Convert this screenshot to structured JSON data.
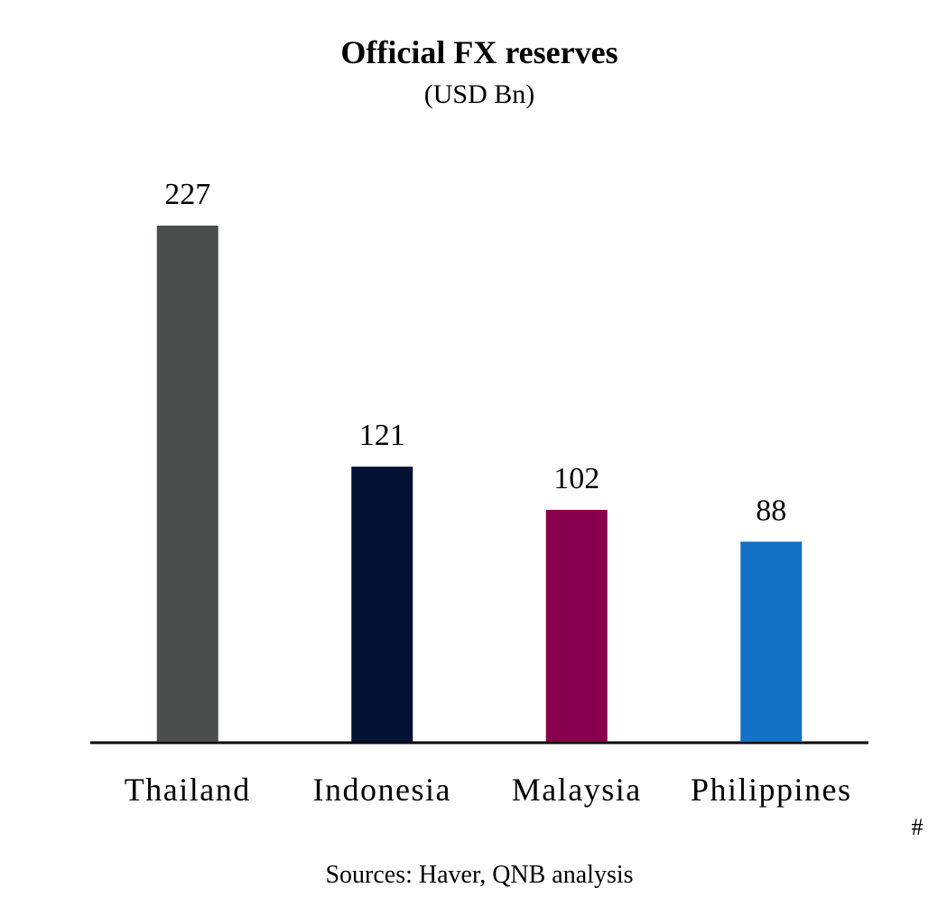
{
  "chart_data": {
    "type": "bar",
    "title": "Official FX reserves",
    "subtitle": "(USD Bn)",
    "categories": [
      "Thailand",
      "Indonesia",
      "Malaysia",
      "Philippines"
    ],
    "values": [
      227,
      121,
      102,
      88
    ],
    "colors": [
      "#4a4d4c",
      "#031233",
      "#87004d",
      "#1470c4"
    ],
    "footnote_mark": "#",
    "source": "Sources: Haver, QNB analysis"
  }
}
